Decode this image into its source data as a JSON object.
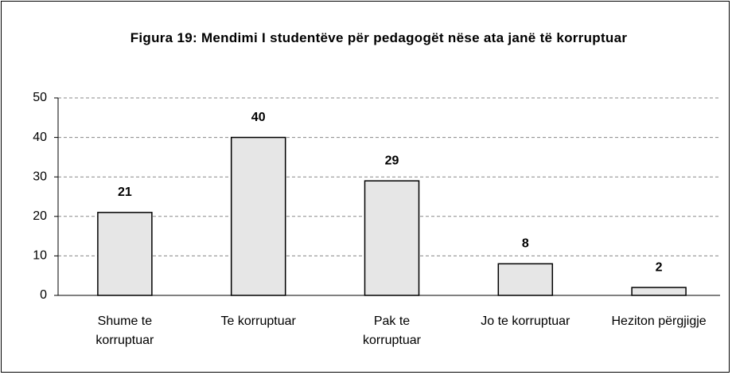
{
  "chart_data": {
    "type": "bar",
    "title": "Figura 19: Mendimi I studentëve për pedagogët nëse ata janë të korruptuar",
    "categories": [
      "Shume te korruptuar",
      "Te korruptuar",
      "Pak te korruptuar",
      "Jo te korruptuar",
      "Heziton përgjigje"
    ],
    "values": [
      21,
      40,
      29,
      8,
      2
    ],
    "color": "#e6e6e6",
    "ylim": [
      0,
      50
    ],
    "yticks": [
      0,
      10,
      20,
      30,
      40,
      50
    ],
    "grid": true
  }
}
